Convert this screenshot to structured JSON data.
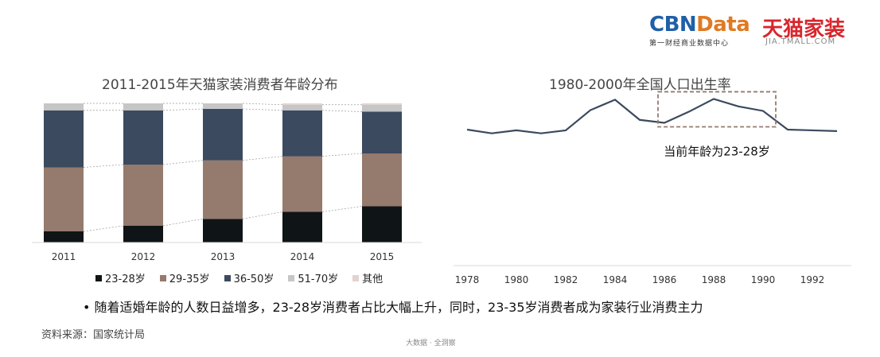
{
  "logo": {
    "cbn_main": "CBN",
    "cbn_accent": "Data",
    "cbn_sub": "第一财经商业数据中心",
    "tmall_main": "天猫家装",
    "tmall_sub": "JIA.TMALL.COM"
  },
  "chart_data": [
    {
      "type": "bar",
      "stacked": true,
      "percent": true,
      "title": "2011-2015年天猫家装消费者年龄分布",
      "categories": [
        "2011",
        "2012",
        "2013",
        "2014",
        "2015"
      ],
      "series": [
        {
          "name": "23-28岁",
          "color": "#0f1416",
          "values": [
            8,
            12,
            17,
            22,
            26
          ]
        },
        {
          "name": "29-35岁",
          "color": "#957a6e",
          "values": [
            46,
            44,
            42,
            40,
            38
          ]
        },
        {
          "name": "36-50岁",
          "color": "#3b4a5e",
          "values": [
            41,
            39,
            37,
            33,
            30
          ]
        },
        {
          "name": "51-70岁",
          "color": "#c6c6c6",
          "values": [
            5,
            5,
            4,
            4,
            5
          ]
        },
        {
          "name": "其他",
          "color": "#e3d2d0",
          "values": [
            0,
            0,
            0,
            1,
            1
          ]
        }
      ],
      "ylim": [
        0,
        100
      ],
      "legend_position": "bottom",
      "grid": false,
      "connector_lines": true
    },
    {
      "type": "line",
      "title": "1980-2000年全国人口出生率",
      "x": [
        1978,
        1979,
        1980,
        1981,
        1982,
        1983,
        1984,
        1985,
        1986,
        1987,
        1988,
        1989,
        1990,
        1991,
        1992,
        1993
      ],
      "series": [
        {
          "name": "",
          "color": "#3b4a5e",
          "values": [
            18.3,
            17.8,
            18.2,
            17.8,
            18.2,
            20.9,
            22.3,
            19.6,
            19.2,
            20.7,
            22.4,
            21.4,
            20.8,
            18.3,
            18.2,
            18.1
          ]
        }
      ],
      "x_ticks": [
        "1978",
        "1980",
        "1982",
        "1984",
        "1986",
        "1988",
        "1990",
        "1992"
      ],
      "ylim": [
        0,
        25
      ],
      "grid": false,
      "annotation": {
        "text": "当前年龄为23-28岁",
        "x_start": 1986,
        "x_end": 1990
      }
    }
  ],
  "bullet_text": "随着适婚年龄的人数日益增多，23-28岁消费者占比大幅上升，同时，23-35岁消费者成为家装行业消费主力",
  "bullet_symbol": "•",
  "source": "资料来源：国家统计局",
  "footer": "大数据 · 全洞察"
}
